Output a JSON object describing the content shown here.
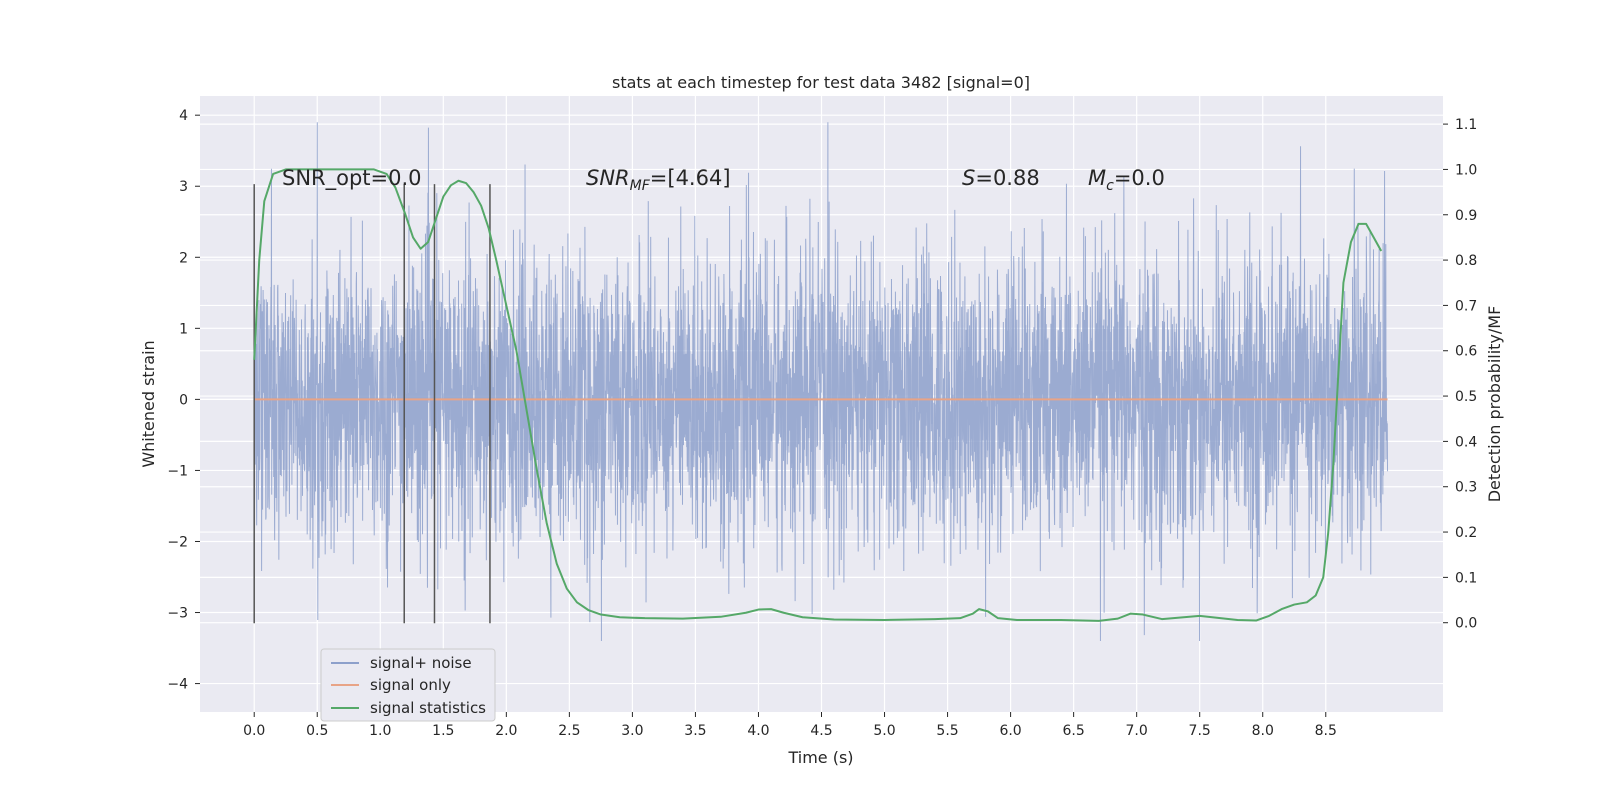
{
  "chart_data": {
    "type": "line",
    "title": "stats at each timestep for test data 3482 [signal=0]",
    "xlabel": "Time (s)",
    "ylabel": "Whitened strain",
    "y2label": "Detection probability/MF",
    "xlim": [
      -0.43,
      9.43
    ],
    "ylim": [
      -4.4,
      4.27
    ],
    "y2lim": [
      -0.197,
      1.162
    ],
    "xticks": [
      0.0,
      0.5,
      1.0,
      1.5,
      2.0,
      2.5,
      3.0,
      3.5,
      4.0,
      4.5,
      5.0,
      5.5,
      6.0,
      6.5,
      7.0,
      7.5,
      8.0,
      8.5
    ],
    "xtick_labels": [
      "0.0",
      "0.5",
      "1.0",
      "1.5",
      "2.0",
      "2.5",
      "3.0",
      "3.5",
      "4.0",
      "4.5",
      "5.0",
      "5.5",
      "6.0",
      "6.5",
      "7.0",
      "7.5",
      "8.0",
      "8.5"
    ],
    "yticks": [
      -4,
      -3,
      -2,
      -1,
      0,
      1,
      2,
      3,
      4
    ],
    "ytick_labels": [
      "−4",
      "−3",
      "−2",
      "−1",
      "0",
      "1",
      "2",
      "3",
      "4"
    ],
    "y2ticks": [
      0.0,
      0.1,
      0.2,
      0.3,
      0.4,
      0.5,
      0.6,
      0.7,
      0.8,
      0.9,
      1.0,
      1.1
    ],
    "y2tick_labels": [
      "0.0",
      "0.1",
      "0.2",
      "0.3",
      "0.4",
      "0.5",
      "0.6",
      "0.7",
      "0.8",
      "0.9",
      "1.0",
      "1.1"
    ],
    "grid": true,
    "legend_placement": "lower-left",
    "series": [
      {
        "name": "signal+ noise",
        "color": "#8da0cb",
        "kind": "noise",
        "x_range": [
          0.0,
          8.99
        ],
        "envelope_y": [
          -3.4,
          3.9
        ]
      },
      {
        "name": "signal only",
        "color": "#e8a487",
        "kind": "flat",
        "x": [
          0.0,
          8.99
        ],
        "y": [
          0.0,
          0.0
        ]
      },
      {
        "name": "signal statistics",
        "color": "#55a868",
        "kind": "line",
        "axis": "right",
        "x": [
          0.0,
          0.04,
          0.08,
          0.15,
          0.25,
          0.4,
          0.6,
          0.8,
          0.95,
          1.05,
          1.12,
          1.2,
          1.26,
          1.32,
          1.38,
          1.44,
          1.5,
          1.56,
          1.62,
          1.68,
          1.74,
          1.8,
          1.86,
          1.92,
          2.0,
          2.08,
          2.16,
          2.24,
          2.32,
          2.4,
          2.48,
          2.56,
          2.65,
          2.75,
          2.9,
          3.1,
          3.4,
          3.7,
          3.9,
          4.0,
          4.1,
          4.2,
          4.35,
          4.6,
          5.0,
          5.4,
          5.6,
          5.7,
          5.75,
          5.82,
          5.9,
          6.05,
          6.4,
          6.7,
          6.85,
          6.95,
          7.05,
          7.2,
          7.5,
          7.8,
          7.95,
          8.05,
          8.15,
          8.25,
          8.35,
          8.42,
          8.48,
          8.52,
          8.56,
          8.6,
          8.64,
          8.7,
          8.76,
          8.82,
          8.88,
          8.94
        ],
        "y": [
          0.58,
          0.8,
          0.93,
          0.99,
          1.0,
          1.0,
          1.0,
          1.0,
          1.0,
          0.99,
          0.96,
          0.9,
          0.85,
          0.825,
          0.84,
          0.89,
          0.94,
          0.965,
          0.975,
          0.97,
          0.95,
          0.92,
          0.87,
          0.8,
          0.7,
          0.6,
          0.47,
          0.34,
          0.22,
          0.13,
          0.075,
          0.045,
          0.028,
          0.018,
          0.012,
          0.01,
          0.009,
          0.013,
          0.022,
          0.029,
          0.03,
          0.022,
          0.012,
          0.007,
          0.006,
          0.008,
          0.01,
          0.02,
          0.03,
          0.025,
          0.01,
          0.006,
          0.006,
          0.004,
          0.009,
          0.02,
          0.018,
          0.008,
          0.015,
          0.006,
          0.005,
          0.015,
          0.03,
          0.04,
          0.045,
          0.06,
          0.1,
          0.2,
          0.35,
          0.55,
          0.75,
          0.84,
          0.88,
          0.88,
          0.85,
          0.82
        ]
      }
    ],
    "vlines": [
      0.0,
      1.19,
      1.43,
      1.87
    ],
    "vline_color": "#555555",
    "vline_yrange": [
      -3.15,
      3.03
    ],
    "annotations": [
      {
        "id": "snr-opt",
        "parts": [
          {
            "t": "SNR_opt=0.0",
            "style": "normal"
          }
        ]
      },
      {
        "id": "snr-mf",
        "parts": [
          {
            "t": "SNR",
            "style": "italic"
          },
          {
            "t": "MF",
            "style": "italic-sub"
          },
          {
            "t": "=[4.64]",
            "style": "normal"
          }
        ]
      },
      {
        "id": "s-value",
        "parts": [
          {
            "t": "S",
            "style": "italic"
          },
          {
            "t": "=0.88",
            "style": "normal"
          }
        ]
      },
      {
        "id": "mc-value",
        "parts": [
          {
            "t": "M",
            "style": "italic"
          },
          {
            "t": "c",
            "style": "italic-sub"
          },
          {
            "t": "=0.0",
            "style": "normal"
          }
        ]
      }
    ]
  }
}
